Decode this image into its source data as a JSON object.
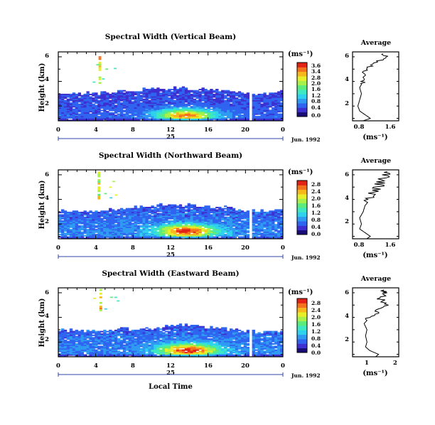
{
  "colormap": [
    "#1a0c75",
    "#3d2fd0",
    "#2f64f0",
    "#2f9af2",
    "#2fd2ee",
    "#3de8c2",
    "#5cec7e",
    "#a8f04a",
    "#e6ef2a",
    "#f7b81c",
    "#f4721e",
    "#e22216"
  ],
  "panels": [
    {
      "title": "Spectral Width (Vertical Beam)",
      "ylabel": "Height (km)",
      "unit_label": "(ms⁻¹)",
      "date_label": "Jun. 1992",
      "day_label": "25",
      "xticks": [
        "0",
        "4",
        "8",
        "12",
        "16",
        "20",
        "0"
      ],
      "yticks": [
        "2",
        "4",
        "6"
      ],
      "colorbar_ticks": [
        "3.6",
        "3.4",
        "2.8",
        "2.0",
        "1.6",
        "1.2",
        "0.8",
        "0.4",
        "0.0"
      ],
      "average_title": "Average",
      "average_xticks": [
        "0.8",
        "1.6"
      ],
      "average_unit": "(ms⁻¹)"
    },
    {
      "title": "Spectral Width (Northward Beam)",
      "ylabel": "Height (km)",
      "unit_label": "(ms⁻¹)",
      "date_label": "Jun. 1992",
      "day_label": "25",
      "xticks": [
        "0",
        "4",
        "8",
        "12",
        "16",
        "20",
        "0"
      ],
      "yticks": [
        "2",
        "4",
        "6"
      ],
      "colorbar_ticks": [
        "2.8",
        "2.4",
        "2.0",
        "1.6",
        "1.2",
        "0.8",
        "0.4",
        "0.0"
      ],
      "average_title": "Average",
      "average_xticks": [
        "0.8",
        "1.6"
      ],
      "average_unit": "(ms⁻¹)"
    },
    {
      "title": "Spectral Width (Eastward Beam)",
      "ylabel": "Height (km)",
      "unit_label": "(ms⁻¹)",
      "date_label": "Jun. 1992",
      "day_label": "25",
      "xticks": [
        "0",
        "4",
        "8",
        "12",
        "16",
        "20",
        "0"
      ],
      "yticks": [
        "2",
        "4",
        "6"
      ],
      "colorbar_ticks": [
        "2.8",
        "2.4",
        "2.0",
        "1.6",
        "1.2",
        "0.8",
        "0.4",
        "0.0"
      ],
      "average_title": "Average",
      "average_xticks": [
        "1",
        "2"
      ],
      "average_unit": "(ms⁻¹)"
    }
  ],
  "xlabel": "Local Time",
  "chart_data": [
    {
      "type": "heatmap",
      "title": "Spectral Width (Vertical Beam)",
      "xlabel": "Local Time",
      "ylabel": "Height (km)",
      "xlim": [
        0,
        24
      ],
      "ylim": [
        0.8,
        6.4
      ],
      "colorbar_range": [
        0.0,
        3.6
      ],
      "echo_layer_top_km": [
        3.0,
        3.0,
        3.0,
        3.1,
        3.2,
        3.2,
        3.4,
        3.4,
        3.4,
        3.3,
        3.3,
        3.2,
        3.1,
        3.0,
        3.0,
        3.1
      ],
      "data_gaps_hours": [
        [
          20.2,
          20.7
        ]
      ],
      "isolated_echo": {
        "hour": 4.3,
        "height_km": [
          3.8,
          6.0
        ],
        "value": 3.4
      },
      "peak": {
        "hour": 13.5,
        "height_km": 1.2,
        "value": 3.0
      },
      "average_profile": {
        "height_km": [
          0.8,
          1.0,
          1.2,
          1.6,
          2.0,
          2.5,
          3.0,
          3.5,
          4.0,
          4.5,
          5.0,
          5.5,
          6.0,
          6.3
        ],
        "width_ms": [
          0.8,
          1.0,
          0.9,
          0.7,
          0.65,
          0.7,
          0.75,
          0.7,
          0.8,
          0.8,
          0.9,
          1.1,
          1.5,
          1.3
        ]
      }
    },
    {
      "type": "heatmap",
      "title": "Spectral Width (Northward Beam)",
      "xlabel": "Local Time",
      "ylabel": "Height (km)",
      "xlim": [
        0,
        24
      ],
      "ylim": [
        0.8,
        6.4
      ],
      "colorbar_range": [
        0.0,
        2.8
      ],
      "echo_layer_top_km": [
        3.0,
        3.0,
        3.0,
        3.1,
        3.2,
        3.3,
        3.4,
        3.5,
        3.5,
        3.5,
        3.4,
        3.3,
        3.2,
        3.1,
        3.0,
        3.0
      ],
      "data_gaps_hours": [
        [
          20.2,
          20.6
        ]
      ],
      "isolated_echo": {
        "hour": 4.2,
        "height_km": [
          4.0,
          6.2
        ],
        "value": 2.4
      },
      "peak": {
        "hour": 13.6,
        "height_km": 1.4,
        "value": 2.6
      },
      "average_profile": {
        "height_km": [
          0.8,
          1.0,
          1.3,
          1.6,
          2.0,
          2.5,
          3.0,
          3.5,
          4.0,
          4.5,
          5.0,
          5.5,
          6.0,
          6.3
        ],
        "width_ms": [
          0.9,
          1.0,
          0.85,
          0.7,
          0.75,
          0.7,
          0.8,
          0.85,
          1.0,
          1.1,
          1.2,
          1.3,
          1.4,
          1.5
        ]
      }
    },
    {
      "type": "heatmap",
      "title": "Spectral Width (Eastward Beam)",
      "xlabel": "Local Time",
      "ylabel": "Height (km)",
      "xlim": [
        0,
        24
      ],
      "ylim": [
        0.8,
        6.4
      ],
      "colorbar_range": [
        0.0,
        2.8
      ],
      "echo_layer_top_km": [
        2.9,
        2.9,
        2.9,
        2.9,
        3.0,
        3.0,
        3.1,
        3.2,
        3.3,
        3.3,
        3.2,
        3.1,
        3.0,
        2.9,
        2.8,
        2.8
      ],
      "data_gaps_hours": [
        [
          20.2,
          20.6
        ]
      ],
      "isolated_echo": {
        "hour": 4.4,
        "height_km": [
          4.2,
          6.2
        ],
        "value": 2.4
      },
      "peak": {
        "hour": 13.8,
        "height_km": 1.3,
        "value": 2.6
      },
      "average_profile": {
        "height_km": [
          0.8,
          1.0,
          1.3,
          1.6,
          2.0,
          2.5,
          3.0,
          3.5,
          4.0,
          4.5,
          5.0,
          5.5,
          6.0,
          6.3
        ],
        "width_ms": [
          1.4,
          1.5,
          1.2,
          1.05,
          1.1,
          1.05,
          1.1,
          1.0,
          1.2,
          1.5,
          1.7,
          1.6,
          1.8,
          1.7
        ]
      }
    }
  ]
}
